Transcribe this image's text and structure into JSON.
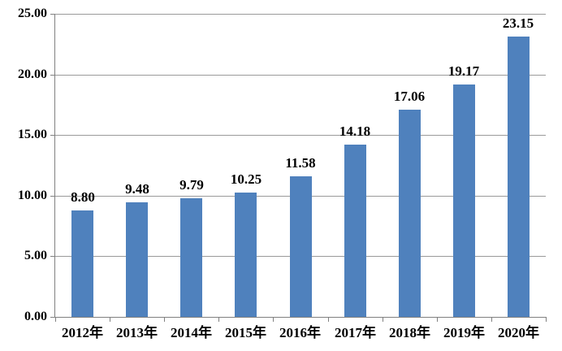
{
  "chart_data": {
    "type": "bar",
    "title": "",
    "xlabel": "",
    "ylabel": "",
    "categories": [
      "2012年",
      "2013年",
      "2014年",
      "2015年",
      "2016年",
      "2017年",
      "2018年",
      "2019年",
      "2020年"
    ],
    "values": [
      8.8,
      9.48,
      9.79,
      10.25,
      11.58,
      14.18,
      17.06,
      19.17,
      23.15
    ],
    "value_labels": [
      "8.80",
      "9.48",
      "9.79",
      "10.25",
      "11.58",
      "14.18",
      "17.06",
      "19.17",
      "23.15"
    ],
    "ylim": [
      0,
      25
    ],
    "ytick_step": 5,
    "ytick_labels": [
      "0.00",
      "5.00",
      "10.00",
      "15.00",
      "20.00",
      "25.00"
    ],
    "grid": true,
    "legend": false,
    "colors": {
      "bar": "#4F81BD",
      "gridline": "#9a9a9a",
      "axis": "#808080",
      "text": "#000000",
      "background": "#ffffff"
    }
  }
}
